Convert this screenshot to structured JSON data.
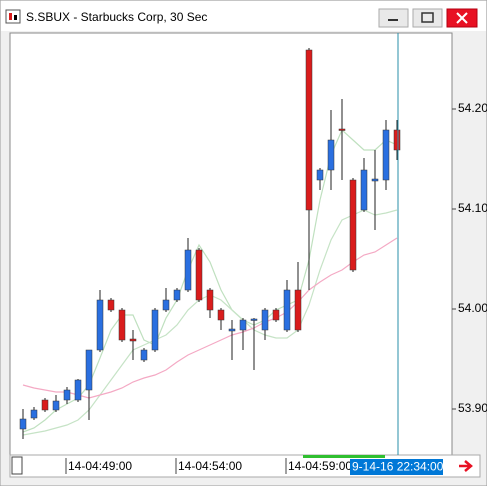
{
  "chart_data": {
    "type": "candlestick",
    "title": "S.SBUX - Starbucks Corp, 30 Sec",
    "cursor_label": "9-14-16 22:34:00",
    "categories": [
      null,
      null,
      null,
      null,
      "14-04:49:00",
      null,
      null,
      null,
      null,
      null,
      null,
      null,
      null,
      null,
      "14-04:54:00",
      null,
      null,
      null,
      null,
      null,
      null,
      null,
      null,
      null,
      "14-04:59:00",
      null,
      null,
      null,
      null,
      null,
      null,
      null,
      null,
      null,
      null
    ],
    "open": [
      53.88,
      53.891,
      53.909,
      53.899,
      53.909,
      53.909,
      53.919,
      53.959,
      54.009,
      53.999,
      53.97,
      53.949,
      53.959,
      53.999,
      54.009,
      54.019,
      54.059,
      54.019,
      53.999,
      53.978,
      53.979,
      53.989,
      53.979,
      53.999,
      53.979,
      54.019,
      54.259,
      54.129,
      54.139,
      54.18,
      54.129,
      54.099,
      54.128,
      54.129,
      54.179
    ],
    "high": [
      53.9,
      53.902,
      53.911,
      53.914,
      53.922,
      53.93,
      53.959,
      54.019,
      54.011,
      54.001,
      53.979,
      53.961,
      54.001,
      54.021,
      54.021,
      54.071,
      54.061,
      54.021,
      54.001,
      53.989,
      53.991,
      53.991,
      54.001,
      54.001,
      54.029,
      54.047,
      54.261,
      54.141,
      54.199,
      54.21,
      54.131,
      54.151,
      54.159,
      54.189,
      54.189
    ],
    "low": [
      53.87,
      53.889,
      53.897,
      53.897,
      53.905,
      53.907,
      53.889,
      53.957,
      53.997,
      53.967,
      53.949,
      53.947,
      53.957,
      53.997,
      54.007,
      54.017,
      54.007,
      53.991,
      53.979,
      53.949,
      53.959,
      53.939,
      53.969,
      53.987,
      53.977,
      53.977,
      54.019,
      54.119,
      54.119,
      54.129,
      54.037,
      54.097,
      54.079,
      54.119,
      54.149
    ],
    "close": [
      53.89,
      53.899,
      53.899,
      53.908,
      53.919,
      53.929,
      53.959,
      54.009,
      53.999,
      53.969,
      53.968,
      53.959,
      53.999,
      54.009,
      54.019,
      54.059,
      54.009,
      53.999,
      53.989,
      53.98,
      53.989,
      53.99,
      53.999,
      53.989,
      54.019,
      53.979,
      54.099,
      54.139,
      54.169,
      54.179,
      54.039,
      54.139,
      54.13,
      54.179,
      54.159
    ],
    "up_color": "#2a6fe0",
    "down_color": "#d91c1c",
    "lines": [
      {
        "color": "#bfe0bf",
        "values": [
          53.877,
          53.881,
          53.889,
          53.899,
          53.905,
          53.911,
          53.924,
          53.951,
          53.979,
          53.994,
          53.994,
          53.969,
          53.964,
          53.991,
          54.009,
          54.039,
          54.064,
          54.047,
          54.019,
          53.999,
          53.989,
          53.984,
          53.989,
          53.999,
          54.004,
          54.009,
          54.049,
          54.109,
          54.154,
          54.179,
          54.169,
          54.159,
          54.159,
          54.169,
          54.164
        ]
      },
      {
        "color": "#c6e3c6",
        "values": [
          53.874,
          53.876,
          53.878,
          53.881,
          53.884,
          53.889,
          53.899,
          53.914,
          53.929,
          53.944,
          53.959,
          53.964,
          53.969,
          53.974,
          53.984,
          53.999,
          54.009,
          54.014,
          54.009,
          53.999,
          53.989,
          53.979,
          53.974,
          53.971,
          53.971,
          53.979,
          54.004,
          54.039,
          54.069,
          54.089,
          54.094,
          54.099,
          54.094,
          54.096,
          54.099
        ]
      },
      {
        "color": "#f4a9c4",
        "values": [
          53.924,
          53.921,
          53.919,
          53.917,
          53.917,
          53.914,
          53.911,
          53.914,
          53.917,
          53.921,
          53.927,
          53.931,
          53.934,
          53.939,
          53.947,
          53.954,
          53.959,
          53.964,
          53.969,
          53.974,
          53.977,
          53.981,
          53.987,
          53.991,
          53.997,
          54.007,
          54.019,
          54.027,
          54.034,
          54.039,
          54.047,
          54.054,
          54.057,
          54.064,
          54.071
        ]
      }
    ],
    "ylim": [
      53.854,
      54.276
    ],
    "yticks": [
      {
        "value": 53.9,
        "label": "53.90"
      },
      {
        "value": 54.0,
        "label": "54.00"
      },
      {
        "value": 54.1,
        "label": "54.10"
      },
      {
        "value": 54.2,
        "label": "54.20"
      }
    ]
  }
}
